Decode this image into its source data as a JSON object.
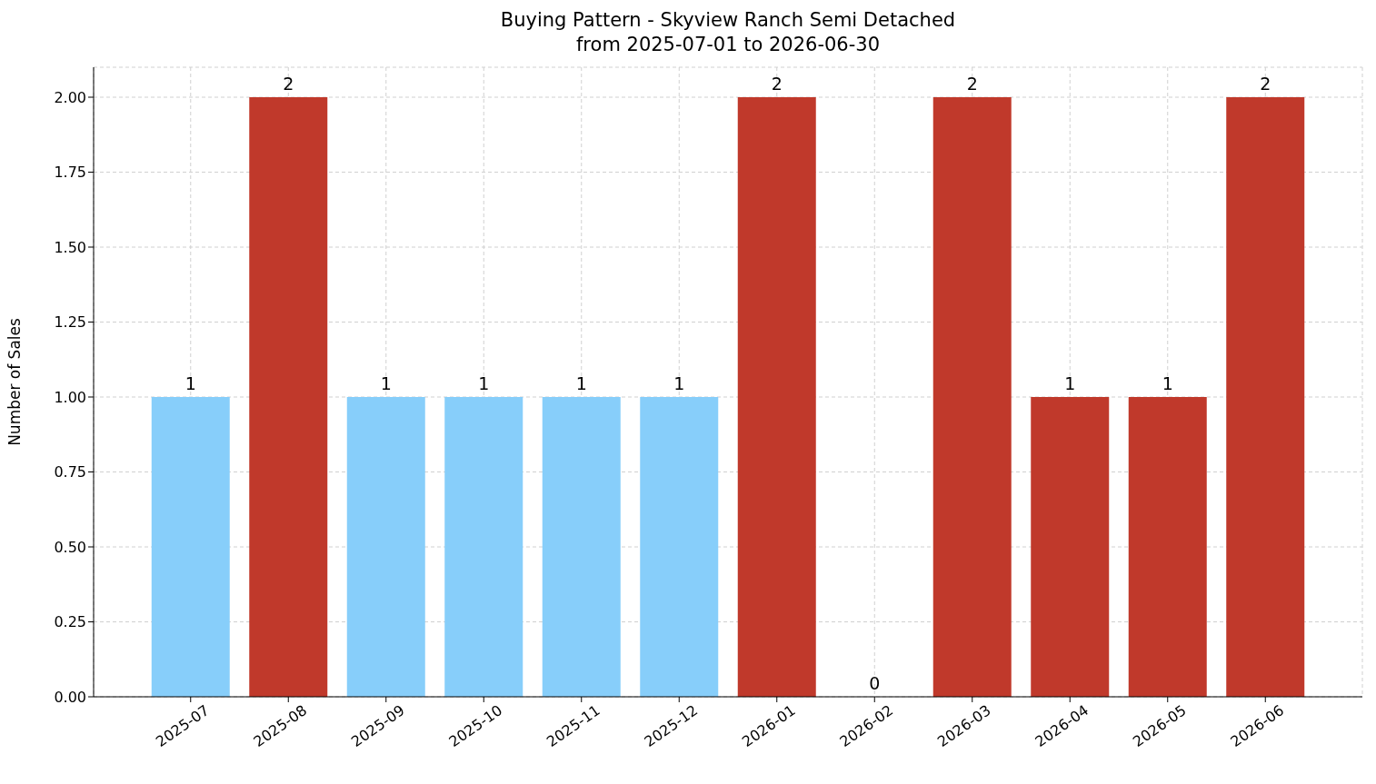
{
  "chart_data": {
    "type": "bar",
    "title": "Buying Pattern - Skyview Ranch Semi Detached\nfrom 2025-07-01 to 2026-06-30",
    "ylabel": "Number of Sales",
    "categories": [
      "2025-07",
      "2025-08",
      "2025-09",
      "2025-10",
      "2025-11",
      "2025-12",
      "2026-01",
      "2026-02",
      "2026-03",
      "2026-04",
      "2026-05",
      "2026-06"
    ],
    "values": [
      1,
      2,
      1,
      1,
      1,
      1,
      2,
      0,
      2,
      1,
      1,
      2
    ],
    "colors": [
      "#87cefa",
      "#c0392b",
      "#87cefa",
      "#87cefa",
      "#87cefa",
      "#87cefa",
      "#c0392b",
      "#c0392b",
      "#c0392b",
      "#c0392b",
      "#c0392b",
      "#c0392b"
    ],
    "ylim": [
      0,
      2.1
    ],
    "yticks": [
      {
        "value": 0,
        "label": "0.00"
      },
      {
        "value": 0.25,
        "label": "0.25"
      },
      {
        "value": 0.5,
        "label": "0.50"
      },
      {
        "value": 0.75,
        "label": "0.75"
      },
      {
        "value": 1,
        "label": "1.00"
      },
      {
        "value": 1.25,
        "label": "1.25"
      },
      {
        "value": 1.5,
        "label": "1.50"
      },
      {
        "value": 1.75,
        "label": "1.75"
      },
      {
        "value": 2,
        "label": "2.00"
      }
    ],
    "grid": true,
    "data_labels": true
  }
}
